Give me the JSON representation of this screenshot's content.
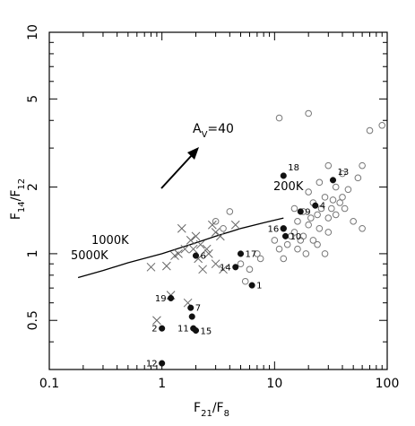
{
  "chart_data": {
    "type": "scatter",
    "title": "",
    "x_scale": "log",
    "y_scale": "log",
    "xlim": [
      0.1,
      100
    ],
    "ylim": [
      0.3,
      10
    ],
    "x_ticks": [
      {
        "value": 0.1,
        "label": "0.1"
      },
      {
        "value": 1,
        "label": "1"
      },
      {
        "value": 10,
        "label": "10"
      },
      {
        "value": 100,
        "label": "100"
      }
    ],
    "y_ticks": [
      {
        "value": 0.5,
        "label": "0.5"
      },
      {
        "value": 1,
        "label": "1"
      },
      {
        "value": 2,
        "label": "2"
      },
      {
        "value": 5,
        "label": "5"
      },
      {
        "value": 10,
        "label": "10"
      }
    ],
    "xlabel": {
      "base": "F",
      "sub": "21",
      "mid": "/F",
      "sub2": "8"
    },
    "ylabel": {
      "base": "F",
      "sub": "14",
      "mid": "/F",
      "sub2": "12"
    },
    "annotation": {
      "text_base": "A",
      "text_sub": "V",
      "text_rest": "=40"
    },
    "curve_labels": [
      "1000K",
      "5000K",
      "200K"
    ],
    "curve": {
      "x": [
        0.18,
        0.3,
        0.5,
        1,
        2,
        3,
        5,
        8,
        12
      ],
      "y": [
        0.78,
        0.84,
        0.91,
        1.0,
        1.12,
        1.2,
        1.3,
        1.38,
        1.45
      ]
    },
    "series": [
      {
        "marker": "open-circle",
        "points": [
          [
            11,
            4.1
          ],
          [
            20,
            4.3
          ],
          [
            70,
            3.6
          ],
          [
            90,
            3.8
          ],
          [
            60,
            2.5
          ],
          [
            30,
            2.5
          ],
          [
            40,
            2.3
          ],
          [
            55,
            2.2
          ],
          [
            25,
            2.1
          ],
          [
            35,
            2.0
          ],
          [
            45,
            1.95
          ],
          [
            20,
            1.9
          ],
          [
            22,
            1.7
          ],
          [
            28,
            1.8
          ],
          [
            32,
            1.6
          ],
          [
            38,
            1.7
          ],
          [
            15,
            1.6
          ],
          [
            18,
            1.55
          ],
          [
            24,
            1.5
          ],
          [
            30,
            1.45
          ],
          [
            35,
            1.5
          ],
          [
            42,
            1.6
          ],
          [
            50,
            1.4
          ],
          [
            60,
            1.3
          ],
          [
            16,
            1.4
          ],
          [
            20,
            1.35
          ],
          [
            25,
            1.3
          ],
          [
            30,
            1.25
          ],
          [
            12,
            1.3
          ],
          [
            14,
            1.2
          ],
          [
            18,
            1.2
          ],
          [
            22,
            1.15
          ],
          [
            13,
            1.1
          ],
          [
            16,
            1.05
          ],
          [
            19,
            1.0
          ],
          [
            24,
            1.1
          ],
          [
            28,
            1.0
          ],
          [
            10,
            1.15
          ],
          [
            11,
            1.05
          ],
          [
            12,
            0.95
          ],
          [
            7,
            1.0
          ],
          [
            7.5,
            0.95
          ],
          [
            6,
            0.85
          ],
          [
            5,
            0.9
          ],
          [
            5.5,
            0.75
          ],
          [
            3,
            1.4
          ],
          [
            3.5,
            1.3
          ],
          [
            4,
            1.55
          ],
          [
            15,
            1.25
          ],
          [
            17,
            1.15
          ],
          [
            26,
            1.6
          ],
          [
            33,
            1.75
          ],
          [
            40,
            1.8
          ],
          [
            21,
            1.45
          ]
        ]
      },
      {
        "marker": "cross",
        "points": [
          [
            0.8,
            0.87
          ],
          [
            1.1,
            0.88
          ],
          [
            1.3,
            0.98
          ],
          [
            1.4,
            1.0
          ],
          [
            1.6,
            1.05
          ],
          [
            1.8,
            1.15
          ],
          [
            2.0,
            1.2
          ],
          [
            2.2,
            1.1
          ],
          [
            2.5,
            1.05
          ],
          [
            2.8,
            1.35
          ],
          [
            3.0,
            1.25
          ],
          [
            3.3,
            1.2
          ],
          [
            2.6,
            1.0
          ],
          [
            3.0,
            0.9
          ],
          [
            3.5,
            0.85
          ],
          [
            4.5,
            1.35
          ],
          [
            2.3,
            0.85
          ],
          [
            1.2,
            0.65
          ],
          [
            1.7,
            0.6
          ],
          [
            0.9,
            0.5
          ],
          [
            1.9,
            1.05
          ],
          [
            2.1,
            0.95
          ],
          [
            1.5,
            1.3
          ]
        ]
      },
      {
        "marker": "filled-circle",
        "points": [
          {
            "x": 12,
            "y": 2.25,
            "label": "18"
          },
          {
            "x": 33,
            "y": 2.15,
            "label": "13"
          },
          {
            "x": 23,
            "y": 1.65,
            "label": "4"
          },
          {
            "x": 17,
            "y": 1.55,
            "label": "9"
          },
          {
            "x": 12,
            "y": 1.3,
            "label": "16"
          },
          {
            "x": 12.5,
            "y": 1.2,
            "label": "10"
          },
          {
            "x": 2.0,
            "y": 0.98,
            "label": "6"
          },
          {
            "x": 5.0,
            "y": 1.0,
            "label": "17"
          },
          {
            "x": 4.5,
            "y": 0.87,
            "label": "14"
          },
          {
            "x": 6.3,
            "y": 0.72,
            "label": "1"
          },
          {
            "x": 1.2,
            "y": 0.63,
            "label": "19"
          },
          {
            "x": 1.8,
            "y": 0.57,
            "label": "7"
          },
          {
            "x": 1.0,
            "y": 0.46,
            "label": "2"
          },
          {
            "x": 1.9,
            "y": 0.46,
            "label": "11"
          },
          {
            "x": 2.0,
            "y": 0.45,
            "label": "15"
          },
          {
            "x": 1.0,
            "y": 0.32,
            "label": "12"
          },
          {
            "x": 1.85,
            "y": 0.52,
            "label": ""
          }
        ]
      }
    ]
  }
}
